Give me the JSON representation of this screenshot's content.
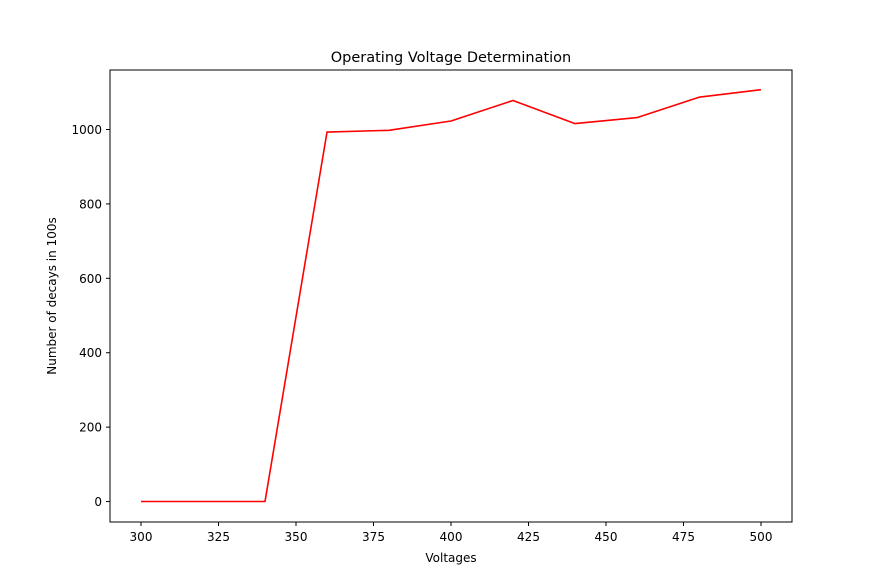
{
  "chart_data": {
    "type": "line",
    "title": "Operating Voltage Determination",
    "xlabel": "Voltages",
    "ylabel": "Number of decays in 100s",
    "xlim": [
      290,
      510
    ],
    "ylim": [
      -55,
      1160
    ],
    "x_ticks": [
      300,
      325,
      350,
      375,
      400,
      425,
      450,
      475,
      500
    ],
    "x_tick_labels": [
      "300",
      "325",
      "350",
      "375",
      "400",
      "425",
      "450",
      "475",
      "500"
    ],
    "y_ticks": [
      0,
      200,
      400,
      600,
      800,
      1000
    ],
    "y_tick_labels": [
      "0",
      "200",
      "400",
      "600",
      "800",
      "1000"
    ],
    "grid": false,
    "series": [
      {
        "color": "#ff0000",
        "x": [
          300,
          320,
          340,
          360,
          380,
          400,
          420,
          440,
          460,
          480,
          500
        ],
        "y": [
          0,
          0,
          0,
          993,
          998,
          1023,
          1078,
          1016,
          1032,
          1087,
          1107
        ]
      }
    ]
  }
}
